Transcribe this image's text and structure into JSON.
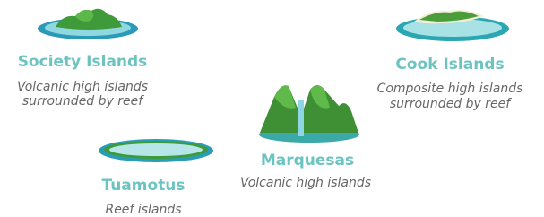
{
  "nodes": [
    {
      "label": "Society Islands",
      "description": [
        "Volcanic high islands",
        "surrounded by reef"
      ]
    },
    {
      "label": "Cook Islands",
      "description": [
        "Composite high islands",
        "surrounded by reef"
      ]
    },
    {
      "label": "Marquesas",
      "description": [
        "Volcanic high islands"
      ]
    },
    {
      "label": "Tuamotus",
      "description": [
        "Reef islands"
      ]
    }
  ]
}
